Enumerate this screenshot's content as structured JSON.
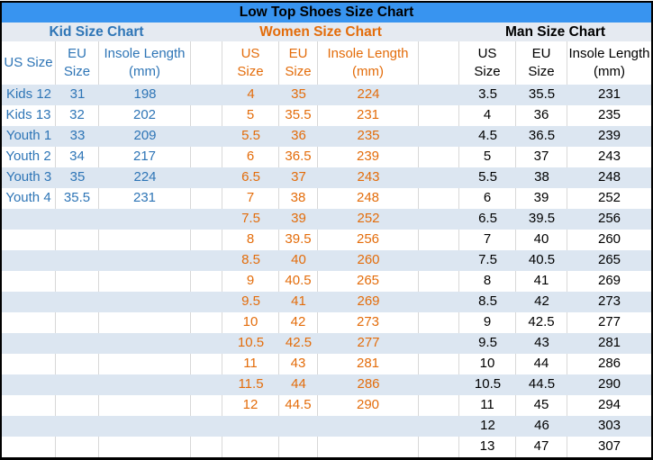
{
  "title": "Low Top Shoes Size Chart",
  "colors": {
    "title_bar_bg": "#3894F0",
    "section_row_bg": "#E5EAF1",
    "banded_row_bg": "#DCE6F1",
    "gridline": "#D8D8D8",
    "outer_border": "#000000",
    "kid_text": "#2E75B6",
    "women_text": "#E36C0A",
    "man_text": "#000000"
  },
  "chart_data": {
    "type": "table",
    "title": "Low Top Shoes Size Chart",
    "total_rows": 18,
    "sections": [
      {
        "label": "Kid Size Chart",
        "text_color": "#2E75B6",
        "columns": [
          "US Size",
          "EU Size",
          "Insole Length (mm)"
        ],
        "header_display": [
          "US Size",
          "EU\nSize",
          "Insole Length\n(mm)"
        ],
        "rows": [
          [
            "Kids 12",
            "31",
            "198"
          ],
          [
            "Kids 13",
            "32",
            "202"
          ],
          [
            "Youth 1",
            "33",
            "209"
          ],
          [
            "Youth 2",
            "34",
            "217"
          ],
          [
            "Youth 3",
            "35",
            "224"
          ],
          [
            "Youth 4",
            "35.5",
            "231"
          ]
        ]
      },
      {
        "label": "Women Size Chart",
        "text_color": "#E36C0A",
        "columns": [
          "US Size",
          "EU Size",
          "Insole Length (mm)"
        ],
        "header_display": [
          "US\nSize",
          "EU\nSize",
          "Insole Length\n(mm)"
        ],
        "rows": [
          [
            "4",
            "35",
            "224"
          ],
          [
            "5",
            "35.5",
            "231"
          ],
          [
            "5.5",
            "36",
            "235"
          ],
          [
            "6",
            "36.5",
            "239"
          ],
          [
            "6.5",
            "37",
            "243"
          ],
          [
            "7",
            "38",
            "248"
          ],
          [
            "7.5",
            "39",
            "252"
          ],
          [
            "8",
            "39.5",
            "256"
          ],
          [
            "8.5",
            "40",
            "260"
          ],
          [
            "9",
            "40.5",
            "265"
          ],
          [
            "9.5",
            "41",
            "269"
          ],
          [
            "10",
            "42",
            "273"
          ],
          [
            "10.5",
            "42.5",
            "277"
          ],
          [
            "11",
            "43",
            "281"
          ],
          [
            "11.5",
            "44",
            "286"
          ],
          [
            "12",
            "44.5",
            "290"
          ]
        ]
      },
      {
        "label": "Man Size Chart",
        "text_color": "#000000",
        "columns": [
          "US Size",
          "EU Size",
          "Insole Length (mm)"
        ],
        "header_display": [
          "US\nSize",
          "EU\nSize",
          "Insole Length\n(mm)"
        ],
        "rows": [
          [
            "3.5",
            "35.5",
            "231"
          ],
          [
            "4",
            "36",
            "235"
          ],
          [
            "4.5",
            "36.5",
            "239"
          ],
          [
            "5",
            "37",
            "243"
          ],
          [
            "5.5",
            "38",
            "248"
          ],
          [
            "6",
            "39",
            "252"
          ],
          [
            "6.5",
            "39.5",
            "256"
          ],
          [
            "7",
            "40",
            "260"
          ],
          [
            "7.5",
            "40.5",
            "265"
          ],
          [
            "8",
            "41",
            "269"
          ],
          [
            "8.5",
            "42",
            "273"
          ],
          [
            "9",
            "42.5",
            "277"
          ],
          [
            "9.5",
            "43",
            "281"
          ],
          [
            "10",
            "44",
            "286"
          ],
          [
            "10.5",
            "44.5",
            "290"
          ],
          [
            "11",
            "45",
            "294"
          ],
          [
            "12",
            "46",
            "303"
          ],
          [
            "13",
            "47",
            "307"
          ]
        ]
      }
    ]
  }
}
